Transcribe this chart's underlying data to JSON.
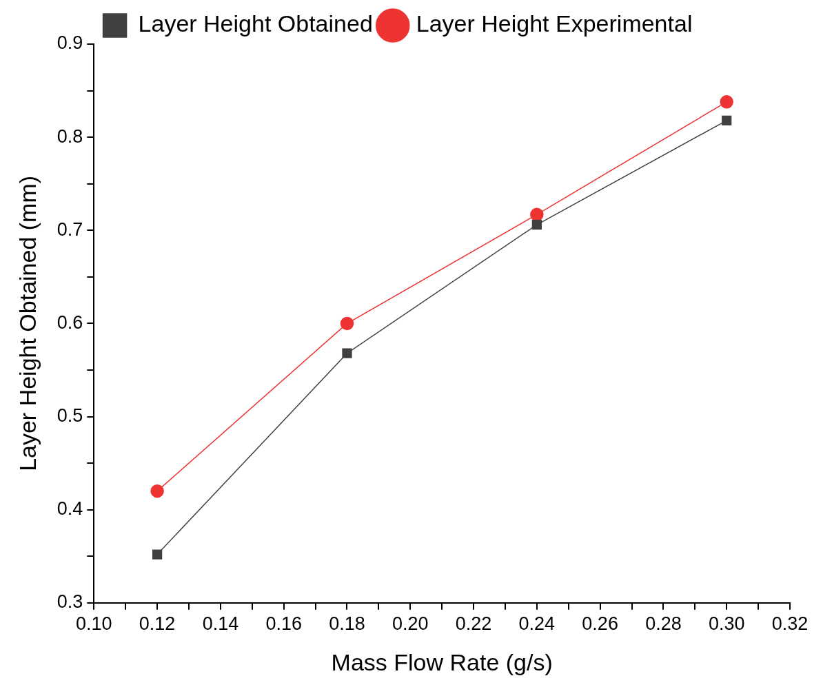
{
  "chart_data": {
    "type": "line",
    "xlabel": "Mass Flow Rate (g/s)",
    "ylabel": "Layer Height Obtained (mm)",
    "x": [
      0.12,
      0.18,
      0.24,
      0.3
    ],
    "series": [
      {
        "name": "Layer Height Obtained",
        "color": "#404040",
        "marker": "square",
        "values": [
          0.352,
          0.568,
          0.706,
          0.818
        ]
      },
      {
        "name": "Layer Height Experimental",
        "color": "#ee3333",
        "marker": "circle",
        "values": [
          0.42,
          0.6,
          0.717,
          0.838
        ]
      }
    ],
    "xlim": [
      0.1,
      0.32
    ],
    "xticks": [
      {
        "value": 0.1,
        "label": "0.10"
      },
      {
        "value": 0.11,
        "label": null
      },
      {
        "value": 0.12,
        "label": "0.12"
      },
      {
        "value": 0.13,
        "label": null
      },
      {
        "value": 0.14,
        "label": "0.14"
      },
      {
        "value": 0.15,
        "label": null
      },
      {
        "value": 0.16,
        "label": "0.16"
      },
      {
        "value": 0.17,
        "label": null
      },
      {
        "value": 0.18,
        "label": "0.18"
      },
      {
        "value": 0.19,
        "label": null
      },
      {
        "value": 0.2,
        "label": "0.20"
      },
      {
        "value": 0.21,
        "label": null
      },
      {
        "value": 0.22,
        "label": "0.22"
      },
      {
        "value": 0.23,
        "label": null
      },
      {
        "value": 0.24,
        "label": "0.24"
      },
      {
        "value": 0.25,
        "label": null
      },
      {
        "value": 0.26,
        "label": "0.26"
      },
      {
        "value": 0.27,
        "label": null
      },
      {
        "value": 0.28,
        "label": "0.28"
      },
      {
        "value": 0.29,
        "label": null
      },
      {
        "value": 0.3,
        "label": "0.30"
      },
      {
        "value": 0.31,
        "label": null
      },
      {
        "value": 0.32,
        "label": "0.32"
      }
    ],
    "ylim": [
      0.3,
      0.9
    ],
    "yticks": [
      0.3,
      {
        "value": 0.35,
        "label": null
      },
      0.4,
      {
        "value": 0.45,
        "label": null
      },
      0.5,
      {
        "value": 0.55,
        "label": null
      },
      0.6,
      {
        "value": 0.65,
        "label": null
      },
      0.7,
      {
        "value": 0.75,
        "label": null
      },
      0.8,
      {
        "value": 0.85,
        "label": null
      },
      0.9
    ],
    "grid": false,
    "legend": "top",
    "line_style": "solid"
  }
}
